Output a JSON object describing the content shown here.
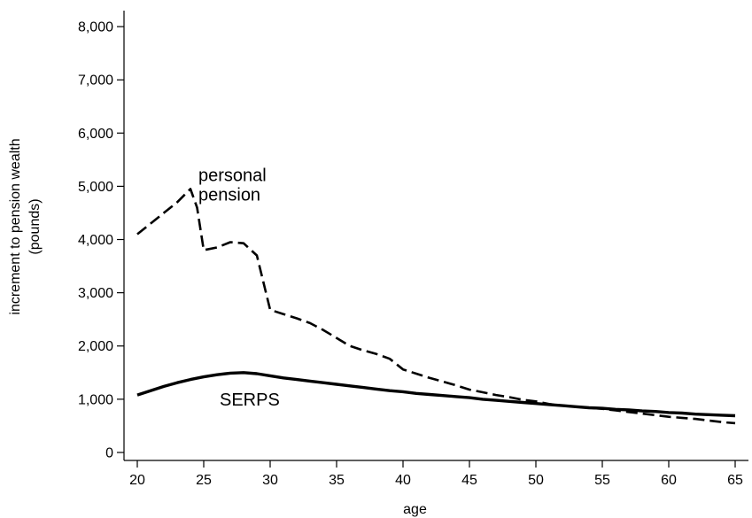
{
  "chart_data": {
    "type": "line",
    "title": "",
    "xlabel": "age",
    "ylabel": "increment to pension wealth",
    "ylabel_unit": "(pounds)",
    "xlim": [
      19,
      66
    ],
    "ylim": [
      -150,
      8300
    ],
    "x_ticks": [
      20,
      25,
      30,
      35,
      40,
      45,
      50,
      55,
      60,
      65
    ],
    "x_tick_labels": [
      "20",
      "25",
      "30",
      "35",
      "40",
      "45",
      "50",
      "55",
      "60",
      "65"
    ],
    "y_ticks": [
      0,
      1000,
      2000,
      3000,
      4000,
      5000,
      6000,
      7000,
      8000
    ],
    "y_tick_labels": [
      "0",
      "1,000",
      "2,000",
      "3,000",
      "4,000",
      "5,000",
      "6,000",
      "7,000",
      "8,000"
    ],
    "grid": false,
    "legend": "none",
    "series": [
      {
        "name": "personal pension",
        "label_lines": [
          "personal",
          "pension"
        ],
        "style": "dashed",
        "color": "#000000",
        "x": [
          20,
          21,
          22,
          23,
          24,
          24.5,
          25,
          26,
          27,
          28,
          29,
          30,
          31,
          32,
          33,
          34,
          35,
          36,
          37,
          38,
          39,
          40,
          41,
          42,
          43,
          44,
          45,
          46,
          47,
          48,
          49,
          50,
          51,
          52,
          53,
          54,
          55,
          56,
          57,
          58,
          59,
          60,
          61,
          62,
          63,
          64,
          65
        ],
        "y": [
          4100,
          4300,
          4500,
          4700,
          4950,
          4600,
          3800,
          3850,
          3950,
          3930,
          3700,
          2680,
          2600,
          2520,
          2430,
          2300,
          2150,
          2000,
          1920,
          1850,
          1760,
          1560,
          1480,
          1400,
          1330,
          1260,
          1180,
          1130,
          1080,
          1040,
          990,
          960,
          910,
          880,
          860,
          840,
          820,
          790,
          760,
          730,
          700,
          670,
          650,
          630,
          600,
          570,
          550
        ]
      },
      {
        "name": "SERPS",
        "style": "solid",
        "color": "#000000",
        "x": [
          20,
          21,
          22,
          23,
          24,
          25,
          26,
          27,
          28,
          29,
          30,
          31,
          32,
          33,
          34,
          35,
          36,
          37,
          38,
          39,
          40,
          41,
          42,
          43,
          44,
          45,
          46,
          47,
          48,
          49,
          50,
          51,
          52,
          53,
          54,
          55,
          56,
          57,
          58,
          59,
          60,
          61,
          62,
          63,
          64,
          65
        ],
        "y": [
          1080,
          1160,
          1240,
          1310,
          1370,
          1420,
          1460,
          1490,
          1500,
          1480,
          1440,
          1400,
          1370,
          1340,
          1310,
          1280,
          1250,
          1220,
          1190,
          1160,
          1140,
          1110,
          1090,
          1070,
          1050,
          1030,
          1000,
          980,
          960,
          940,
          920,
          900,
          880,
          860,
          840,
          830,
          810,
          800,
          780,
          770,
          750,
          740,
          720,
          710,
          700,
          690
        ]
      }
    ]
  }
}
